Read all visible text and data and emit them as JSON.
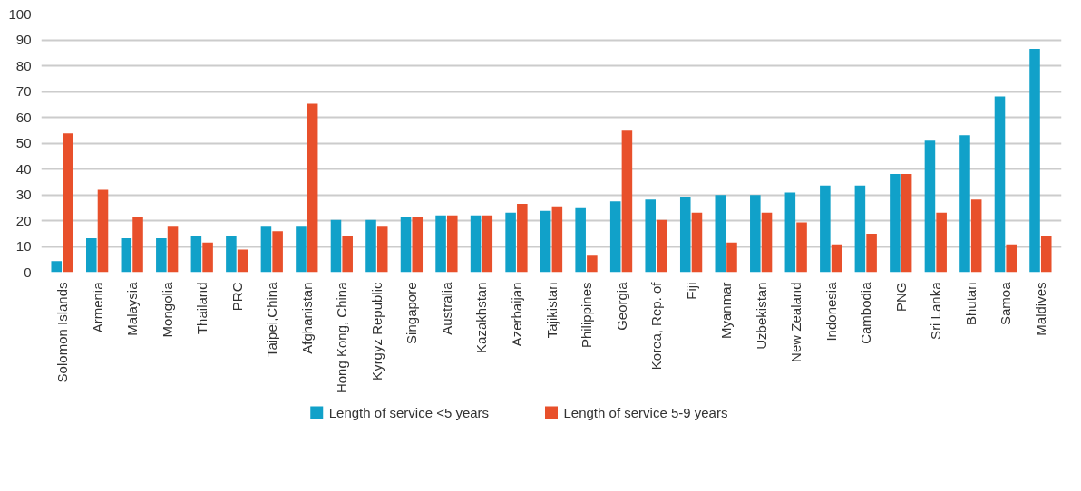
{
  "chart_data": {
    "type": "bar",
    "categories": [
      "Solomon Islands",
      "Armenia",
      "Malaysia",
      "Mongolia",
      "Thailand",
      "PRC",
      "Taipei,China",
      "Afghanistan",
      "Hong Kong, China",
      "Kyrgyz Republic",
      "Singapore",
      "Australia",
      "Kazakhstan",
      "Azerbaijan",
      "Tajikistan",
      "Philippines",
      "Georgia",
      "Korea, Rep. of",
      "Fiji",
      "Myanmar",
      "Uzbekistan",
      "New Zealand",
      "Indonesia",
      "Cambodia",
      "PNG",
      "Sri Lanka",
      "Bhutan",
      "Samoa",
      "Maldives"
    ],
    "series": [
      {
        "name": "Length of service <5 years",
        "color": "#11a1c9",
        "values": [
          4.3,
          13.2,
          13.2,
          13.2,
          14.2,
          14.2,
          17.6,
          17.6,
          20.3,
          20.3,
          21.4,
          22,
          22,
          23.1,
          23.8,
          24.8,
          27.5,
          28.2,
          29.2,
          29.9,
          29.9,
          30.9,
          33.6,
          33.6,
          38.1,
          51,
          53.1,
          68.1,
          86.5
        ]
      },
      {
        "name": "Length of service 5-9 years",
        "color": "#e8502b",
        "values": [
          53.8,
          31.9,
          21.4,
          17.6,
          11.5,
          8.8,
          15.9,
          65.3,
          14.2,
          17.6,
          21.4,
          22,
          22,
          26.5,
          25.5,
          6.4,
          54.8,
          20.3,
          23.1,
          11.5,
          23.1,
          19.3,
          10.8,
          14.9,
          38.1,
          23.1,
          28.2,
          10.8,
          14.2
        ]
      }
    ],
    "ylim": [
      0,
      100
    ],
    "yticks": [
      0,
      10,
      20,
      30,
      40,
      50,
      60,
      70,
      80,
      90,
      100
    ],
    "grid": "y",
    "legend": "bottom"
  }
}
